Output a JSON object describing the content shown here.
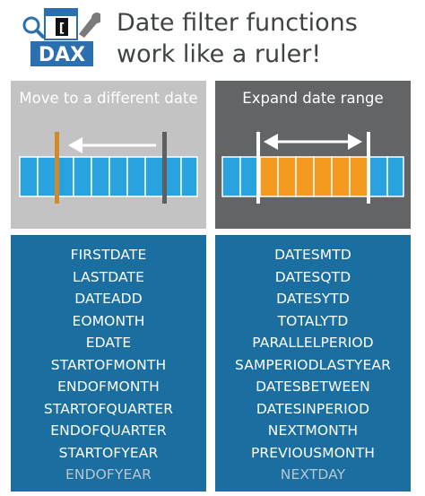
{
  "header": {
    "logo_text": "DAX",
    "title": "Date filter functions work like a ruler!"
  },
  "panels": {
    "left": {
      "title": "Move to a different date",
      "icon": "arrow-left-icon"
    },
    "right": {
      "title": "Expand date range",
      "icon": "double-arrow-icon"
    }
  },
  "colors": {
    "cell_blue": "#29a3e0",
    "highlight_orange": "#f39a1e",
    "old_marker": "#5f5f5f",
    "new_marker": "#cf8a2a",
    "list_bg": "#1a6ea0",
    "left_panel_bg": "#c3c3c3",
    "right_panel_bg": "#636466"
  },
  "lists": {
    "left": [
      "FIRSTDATE",
      "LASTDATE",
      "DATEADD",
      "EOMONTH",
      "EDATE",
      "STARTOFMONTH",
      "ENDOFMONTH",
      "STARTOFQUARTER",
      "ENDOFQUARTER",
      "STARTOFYEAR",
      "ENDOFYEAR"
    ],
    "right": [
      "DATESMTD",
      "DATESQTD",
      "DATESYTD",
      "TOTALYTD",
      "PARALLELPERIOD",
      "SAMPERIODLASTYEAR",
      "DATESBETWEEN",
      "DATESINPERIOD",
      "NEXTMONTH",
      "PREVIOUSMONTH",
      "NEXTDAY"
    ]
  }
}
